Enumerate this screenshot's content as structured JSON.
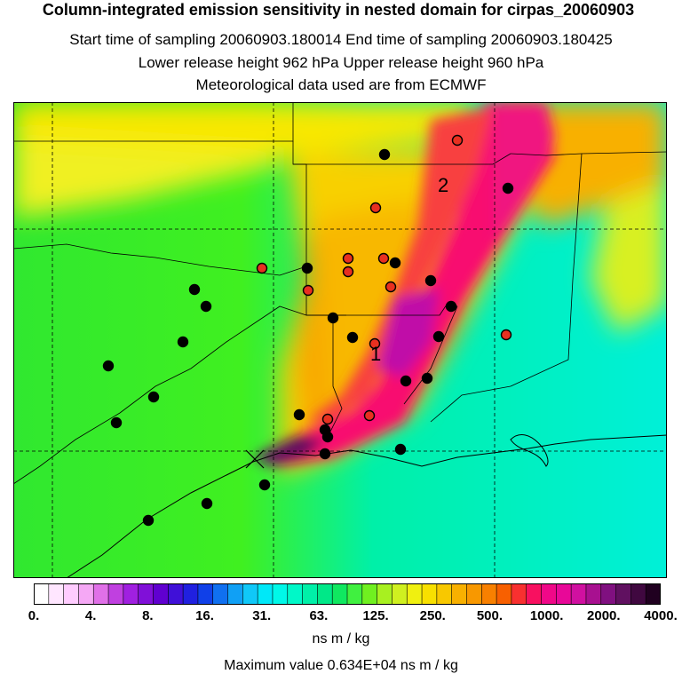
{
  "header": {
    "title": "Column-integrated emission sensitivity in nested domain for cirpas_20060903",
    "line2": "Start time of sampling 20060903.180014     End time of sampling 20060903.180425",
    "line3": "Lower release height  962 hPa       Upper release height  960 hPa",
    "line4": "Meteorological data used are from ECMWF"
  },
  "colorbar": {
    "labels": [
      "0.",
      "4.",
      "8.",
      "16.",
      "31.",
      "63.",
      "125.",
      "250.",
      "500.",
      "1000.",
      "2000.",
      "4000."
    ],
    "units": "ns m / kg",
    "colors": [
      "#ffffff",
      "#ffe6ff",
      "#ffccff",
      "#f5a8f5",
      "#e070e8",
      "#c040e0",
      "#a020e0",
      "#8010d8",
      "#6000d0",
      "#4010d8",
      "#2020e0",
      "#1040e8",
      "#1070f0",
      "#10a0f5",
      "#10c8f8",
      "#00e8f8",
      "#00f8e8",
      "#00f8c8",
      "#00f0a8",
      "#00e888",
      "#10e860",
      "#40f040",
      "#70f020",
      "#a8f020",
      "#d0f020",
      "#f0f010",
      "#f8e000",
      "#f8c800",
      "#f8b000",
      "#f89800",
      "#f88000",
      "#f86000",
      "#f83030",
      "#f81060",
      "#f00888",
      "#e80898",
      "#d010a0",
      "#a81090",
      "#801080",
      "#601060",
      "#400840",
      "#200020"
    ]
  },
  "max_value_text": "Maximum value  0.634E+04 ns m / kg",
  "map_labels": [
    "1",
    "2"
  ],
  "chart_data": {
    "type": "heatmap",
    "title": "Column-integrated emission sensitivity in nested domain for cirpas_20060903",
    "colorbar_scale": [
      0,
      4,
      8,
      16,
      31,
      63,
      125,
      250,
      500,
      1000,
      2000,
      4000
    ],
    "units": "ns m / kg",
    "max_value": 6340,
    "release_point_label": "release site (x marker)",
    "trajectory_cluster_labels": [
      "1",
      "2"
    ]
  }
}
